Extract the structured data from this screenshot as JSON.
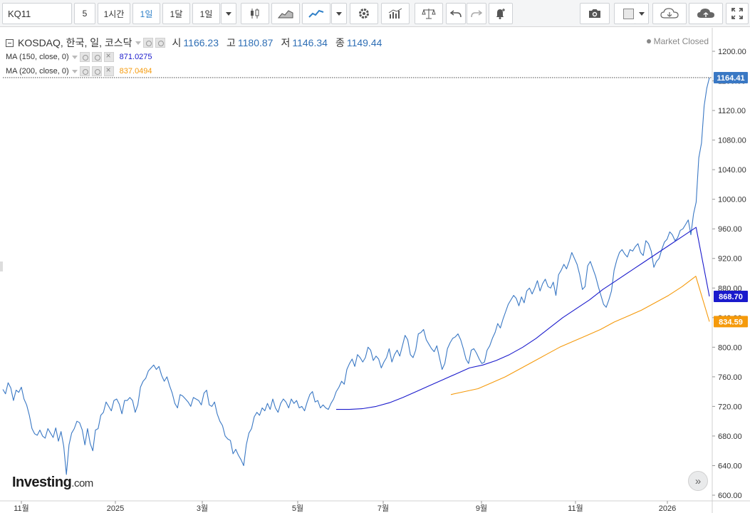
{
  "toolbar": {
    "symbol": "KQ11",
    "interval_minutes": "5",
    "interval_hour": "1시간",
    "interval_day": "1일",
    "interval_month": "1달",
    "range": "1일",
    "icons": [
      "candlestick-icon",
      "area-chart-icon",
      "line-chart-icon",
      "settings-icon",
      "indicators-icon",
      "balance-icon",
      "undo-icon",
      "redo-icon",
      "alert-icon",
      "camera-icon",
      "color-swatch-icon",
      "cloud-download-icon",
      "cloud-upload-icon",
      "fullscreen-icon"
    ]
  },
  "legend": {
    "main": {
      "name": "KOSDAQ, 한국, 일, 코스닥",
      "open_label": "시",
      "open": "1166.23",
      "high_label": "고",
      "high": "1180.87",
      "low_label": "저",
      "low": "1146.34",
      "close_label": "종",
      "close": "1149.44"
    },
    "ma150": {
      "label": "MA (150, close, 0)",
      "value": "871.0275",
      "color": "#1a1acc"
    },
    "ma200": {
      "label": "MA (200, close, 0)",
      "value": "837.0494",
      "color": "#f59a0c"
    }
  },
  "market_status": "Market Closed",
  "logo": {
    "name": "Investing",
    "suffix": ".com"
  },
  "price_tags": {
    "last": "1164.41",
    "ma150": "868.70",
    "ma200": "834.59"
  },
  "chart_data": {
    "type": "line",
    "ylim": [
      600,
      1220
    ],
    "y_ticks": [
      "600.00",
      "640.00",
      "680.00",
      "720.00",
      "760.00",
      "800.00",
      "840.00",
      "880.00",
      "920.00",
      "960.00",
      "1000.00",
      "1040.00",
      "1080.00",
      "1120.00",
      "1160.00",
      "1200.00"
    ],
    "x_ticks": [
      "11월",
      "2025",
      "3월",
      "5월",
      "7월",
      "9월",
      "11월",
      "2026"
    ],
    "series": [
      {
        "name": "KOSDAQ",
        "color": "#3a78c4",
        "values": [
          743,
          737,
          752,
          745,
          728,
          742,
          739,
          746,
          730,
          722,
          708,
          690,
          683,
          681,
          688,
          680,
          677,
          690,
          684,
          678,
          691,
          673,
          686,
          666,
          628,
          668,
          684,
          690,
          700,
          698,
          688,
          668,
          690,
          670,
          660,
          688,
          690,
          708,
          712,
          726,
          720,
          714,
          728,
          730,
          723,
          710,
          728,
          728,
          732,
          728,
          712,
          722,
          746,
          754,
          758,
          768,
          772,
          776,
          770,
          774,
          762,
          754,
          760,
          748,
          738,
          724,
          718,
          736,
          734,
          730,
          726,
          720,
          732,
          730,
          728,
          722,
          738,
          742,
          722,
          720,
          726,
          710,
          700,
          694,
          680,
          676,
          674,
          656,
          662,
          654,
          648,
          640,
          668,
          684,
          690,
          706,
          712,
          708,
          718,
          714,
          724,
          716,
          730,
          718,
          712,
          724,
          730,
          726,
          718,
          730,
          724,
          728,
          718,
          720,
          714,
          726,
          736,
          740,
          726,
          728,
          718,
          722,
          718,
          716,
          724,
          730,
          740,
          746,
          754,
          750,
          770,
          778,
          784,
          774,
          790,
          786,
          780,
          786,
          800,
          796,
          782,
          788,
          784,
          772,
          780,
          786,
          798,
          780,
          790,
          796,
          788,
          802,
          816,
          810,
          790,
          786,
          796,
          818,
          820,
          824,
          810,
          804,
          798,
          794,
          802,
          786,
          770,
          778,
          798,
          806,
          812,
          814,
          818,
          810,
          798,
          784,
          778,
          796,
          798,
          792,
          784,
          778,
          780,
          796,
          802,
          812,
          820,
          832,
          826,
          838,
          848,
          858,
          864,
          870,
          866,
          856,
          868,
          860,
          876,
          880,
          872,
          880,
          890,
          876,
          886,
          892,
          882,
          880,
          888,
          870,
          898,
          904,
          912,
          906,
          916,
          928,
          920,
          912,
          898,
          878,
          882,
          910,
          916,
          906,
          896,
          882,
          870,
          858,
          854,
          864,
          876,
          904,
          918,
          928,
          932,
          926,
          922,
          932,
          930,
          936,
          940,
          928,
          924,
          944,
          940,
          930,
          908,
          916,
          920,
          932,
          942,
          946,
          956,
          952,
          944,
          948,
          958,
          960,
          966,
          972,
          952,
          980,
          996,
          1056,
          1076,
          1126,
          1150,
          1164.41
        ]
      },
      {
        "name": "MA (150, close, 0)",
        "color": "#1a1acc",
        "values": [
          716,
          716,
          717,
          720,
          725,
          732,
          740,
          748,
          756,
          764,
          772,
          776,
          782,
          790,
          800,
          812,
          826,
          840,
          852,
          864,
          878,
          890,
          902,
          914,
          926,
          938,
          950,
          962,
          868.7
        ]
      },
      {
        "name": "MA (200, close, 0)",
        "color": "#f59a0c",
        "values": [
          736,
          740,
          744,
          752,
          760,
          770,
          780,
          790,
          800,
          808,
          816,
          824,
          834,
          842,
          850,
          860,
          870,
          882,
          896,
          834.59
        ]
      }
    ]
  }
}
